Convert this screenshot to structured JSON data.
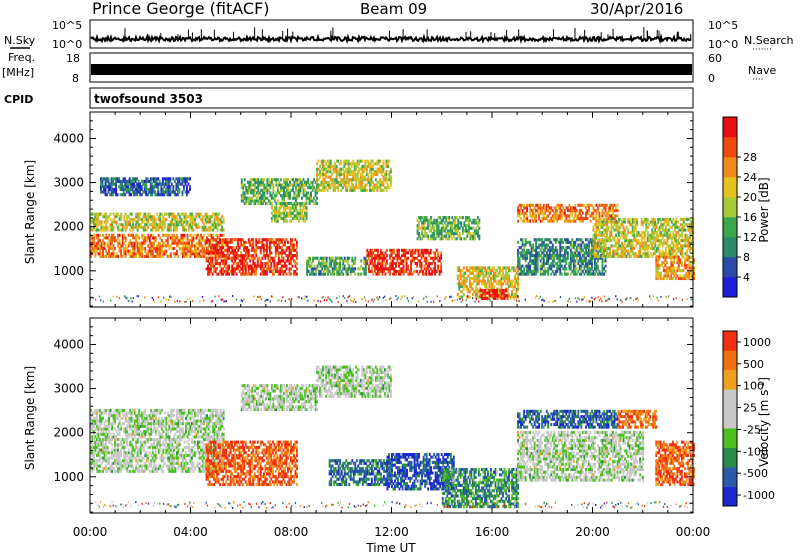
{
  "header": {
    "station": "Prince George (fitACF)",
    "beam": "Beam 09",
    "date": "30/Apr/2016"
  },
  "side_labels": {
    "nsky": "N.Sky",
    "nsearch": "N.Search",
    "nsearch_dots": "·······",
    "freq": "Freq.",
    "freq_unit": "[MHz]",
    "nave": "Nave",
    "nave_dots": "····",
    "cpid": "CPID"
  },
  "noise_panel": {
    "left_ticks": [
      "10^5",
      "10^0"
    ],
    "right_ticks": [
      "10^5",
      "10^0"
    ]
  },
  "freq_panel": {
    "left_ticks": [
      "18",
      "8"
    ],
    "right_ticks": [
      "60",
      "0"
    ]
  },
  "cpid_panel": {
    "program": "twofsound 3503"
  },
  "chart_data": [
    {
      "type": "heatmap",
      "title": "",
      "xlabel": "Time UT",
      "ylabel": "Slant Range [km]",
      "x_ticks": [
        "00:00",
        "04:00",
        "08:00",
        "12:00",
        "16:00",
        "20:00",
        "00:00"
      ],
      "x_range_hours": [
        0,
        24
      ],
      "y_ticks": [
        1000,
        2000,
        3000,
        4000
      ],
      "ylim": [
        180,
        4600
      ],
      "colorbar": {
        "label": "Power [dB]",
        "ticks": [
          "4",
          "8",
          "12",
          "16",
          "20",
          "24",
          "28"
        ],
        "colors": [
          "#1e1ed8",
          "#2a4aa8",
          "#2a8a6a",
          "#3aa84a",
          "#a8c83a",
          "#e8c020",
          "#f08a1a",
          "#f04a10",
          "#e81010"
        ]
      },
      "echo_regions": [
        {
          "t": [
            0.0,
            5.3
          ],
          "r": [
            1300,
            1800
          ],
          "level": 0.75
        },
        {
          "t": [
            0.0,
            5.3
          ],
          "r": [
            1900,
            2300
          ],
          "level": 0.55
        },
        {
          "t": [
            0.4,
            4.0
          ],
          "r": [
            2700,
            3100
          ],
          "level": 0.2
        },
        {
          "t": [
            4.6,
            8.2
          ],
          "r": [
            900,
            1700
          ],
          "level": 0.9
        },
        {
          "t": [
            7.2,
            8.6
          ],
          "r": [
            2100,
            2500
          ],
          "level": 0.5
        },
        {
          "t": [
            6.0,
            9.0
          ],
          "r": [
            2500,
            3100
          ],
          "level": 0.4
        },
        {
          "t": [
            8.6,
            11.0
          ],
          "r": [
            900,
            1300
          ],
          "level": 0.35
        },
        {
          "t": [
            11.0,
            14.0
          ],
          "r": [
            900,
            1500
          ],
          "level": 0.92
        },
        {
          "t": [
            9.0,
            12.0
          ],
          "r": [
            2800,
            3500
          ],
          "level": 0.55
        },
        {
          "t": [
            13.0,
            15.5
          ],
          "r": [
            1700,
            2200
          ],
          "level": 0.4
        },
        {
          "t": [
            14.6,
            17.0
          ],
          "r": [
            380,
            1100
          ],
          "level": 0.6
        },
        {
          "t": [
            15.5,
            16.6
          ],
          "r": [
            350,
            550
          ],
          "level": 0.95
        },
        {
          "t": [
            17.0,
            20.5
          ],
          "r": [
            900,
            1700
          ],
          "level": 0.3
        },
        {
          "t": [
            17.0,
            21.0
          ],
          "r": [
            2100,
            2500
          ],
          "level": 0.75
        },
        {
          "t": [
            20.0,
            24.0
          ],
          "r": [
            1300,
            2200
          ],
          "level": 0.55
        },
        {
          "t": [
            22.5,
            24.0
          ],
          "r": [
            800,
            1300
          ],
          "level": 0.7
        }
      ]
    },
    {
      "type": "heatmap",
      "title": "",
      "xlabel": "Time UT",
      "ylabel": "Slant Range [km]",
      "x_ticks": [
        "00:00",
        "04:00",
        "08:00",
        "12:00",
        "16:00",
        "20:00",
        "00:00"
      ],
      "x_range_hours": [
        0,
        24
      ],
      "y_ticks": [
        1000,
        2000,
        3000,
        4000
      ],
      "ylim": [
        180,
        4600
      ],
      "colorbar": {
        "label": "Velocity [m s",
        "label_sup": "-1",
        "label_end": "]",
        "ticks": [
          "1000",
          "500",
          "100",
          "25",
          "-25",
          "-100",
          "-500",
          "-1000"
        ],
        "colors": [
          "#1a2ad0",
          "#2a5aa8",
          "#2a8a4a",
          "#4ac020",
          "#c8c8c8",
          "#c8c8c8",
          "#f0a020",
          "#f07010",
          "#f03010"
        ]
      },
      "echo_regions": [
        {
          "t": [
            0.0,
            5.3
          ],
          "r": [
            1100,
            2500
          ],
          "level": 0.5
        },
        {
          "t": [
            4.6,
            8.2
          ],
          "r": [
            800,
            1800
          ],
          "level": 0.88
        },
        {
          "t": [
            6.0,
            9.0
          ],
          "r": [
            2500,
            3100
          ],
          "level": 0.5
        },
        {
          "t": [
            9.0,
            12.0
          ],
          "r": [
            2800,
            3500
          ],
          "level": 0.5
        },
        {
          "t": [
            9.5,
            12.0
          ],
          "r": [
            800,
            1400
          ],
          "level": 0.2
        },
        {
          "t": [
            11.8,
            14.5
          ],
          "r": [
            700,
            1500
          ],
          "level": 0.12
        },
        {
          "t": [
            14.0,
            17.0
          ],
          "r": [
            300,
            1200
          ],
          "level": 0.28
        },
        {
          "t": [
            17.0,
            21.0
          ],
          "r": [
            2100,
            2500
          ],
          "level": 0.18
        },
        {
          "t": [
            17.0,
            22.0
          ],
          "r": [
            900,
            2000
          ],
          "level": 0.5
        },
        {
          "t": [
            21.0,
            22.5
          ],
          "r": [
            2100,
            2500
          ],
          "level": 0.85
        },
        {
          "t": [
            22.5,
            24.0
          ],
          "r": [
            800,
            1800
          ],
          "level": 0.85
        }
      ]
    }
  ]
}
